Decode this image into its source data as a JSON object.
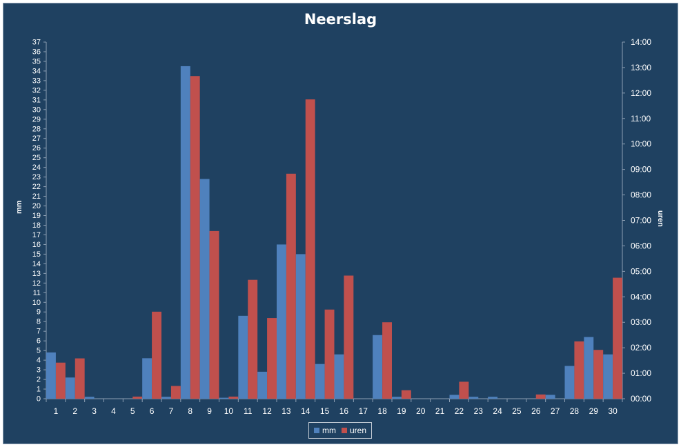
{
  "chart_data": {
    "type": "bar",
    "title": "Neerslag",
    "ylabel_left": "mm",
    "ylabel_right": "uren",
    "categories": [
      "1",
      "2",
      "3",
      "4",
      "5",
      "6",
      "7",
      "8",
      "9",
      "10",
      "11",
      "12",
      "13",
      "14",
      "15",
      "16",
      "17",
      "18",
      "19",
      "20",
      "21",
      "22",
      "23",
      "24",
      "25",
      "26",
      "27",
      "28",
      "29",
      "30"
    ],
    "series": [
      {
        "name": "mm",
        "axis": "left",
        "color": "#4f81bd",
        "values": [
          4.8,
          2.2,
          0.2,
          0,
          0,
          4.2,
          0.2,
          34.5,
          22.8,
          0.1,
          8.6,
          2.8,
          16.0,
          15.0,
          3.6,
          4.6,
          0,
          6.6,
          0.2,
          0,
          0,
          0.4,
          0.2,
          0.2,
          0,
          0,
          0.4,
          3.4,
          6.4,
          4.6
        ]
      },
      {
        "name": "uren",
        "axis": "right",
        "color": "#c0504d",
        "values": [
          "01:25",
          "01:35",
          "00:00",
          "00:00",
          "00:05",
          "03:25",
          "00:30",
          "12:40",
          "06:35",
          "00:05",
          "04:40",
          "03:10",
          "08:50",
          "11:45",
          "03:30",
          "04:50",
          "00:00",
          "03:00",
          "00:20",
          "00:00",
          "00:00",
          "00:40",
          "00:00",
          "00:00",
          "00:00",
          "00:10",
          "00:00",
          "02:15",
          "01:55",
          "04:45"
        ]
      }
    ],
    "ylim_left": [
      0,
      37
    ],
    "yticks_left": [
      "0",
      "1",
      "2",
      "3",
      "4",
      "5",
      "6",
      "7",
      "8",
      "9",
      "10",
      "11",
      "12",
      "13",
      "14",
      "15",
      "16",
      "17",
      "18",
      "19",
      "20",
      "21",
      "22",
      "23",
      "24",
      "25",
      "26",
      "27",
      "28",
      "29",
      "30",
      "31",
      "32",
      "33",
      "34",
      "35",
      "36",
      "37"
    ],
    "ylim_right": [
      "00:00",
      "14:00"
    ],
    "yticks_right": [
      "00:00",
      "01:00",
      "02:00",
      "03:00",
      "04:00",
      "05:00",
      "06:00",
      "07:00",
      "08:00",
      "09:00",
      "10:00",
      "11:00",
      "12:00",
      "13:00",
      "14:00"
    ],
    "grid": false,
    "legend_position": "bottom"
  }
}
